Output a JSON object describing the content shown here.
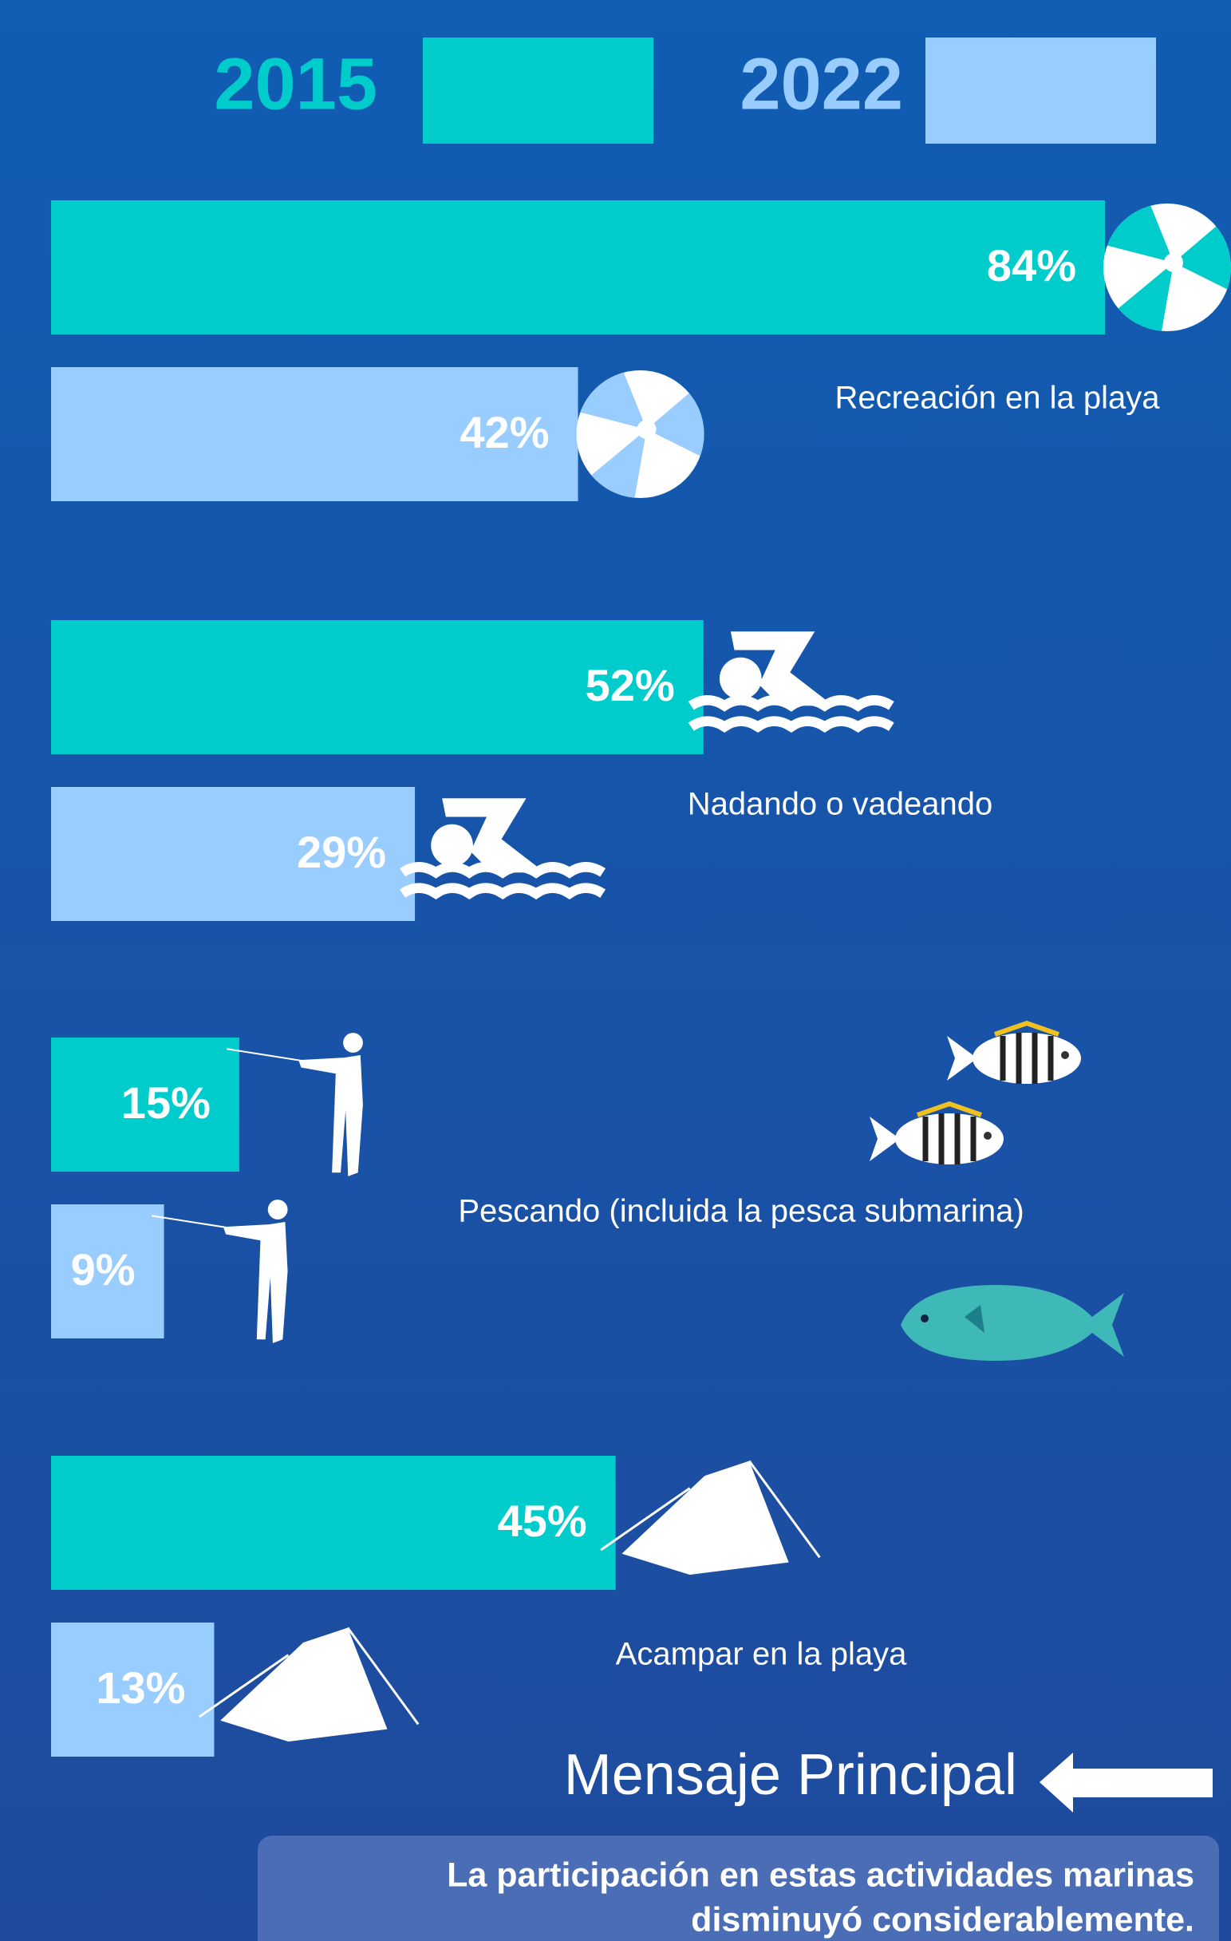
{
  "chart_data": {
    "type": "bar",
    "orientation": "horizontal",
    "categories": [
      "Recreación en la playa",
      "Nadando o vadeando",
      "Pescando (incluida la pesca submarina)",
      "Acampar en la playa"
    ],
    "series": [
      {
        "name": "2015",
        "color": "#00CCCC",
        "values": [
          84,
          52,
          15,
          45
        ],
        "value_labels": [
          "84%",
          "52%",
          "15%",
          "45%"
        ]
      },
      {
        "name": "2022",
        "color": "#99CCFF",
        "values": [
          42,
          29,
          9,
          13
        ],
        "value_labels": [
          "42%",
          "29%",
          "9%",
          "13%"
        ]
      }
    ]
  },
  "message": {
    "title": "Mensaje Principal",
    "lines": [
      "La participación en estas actividades marinas",
      "disminuyó considerablemente."
    ]
  }
}
